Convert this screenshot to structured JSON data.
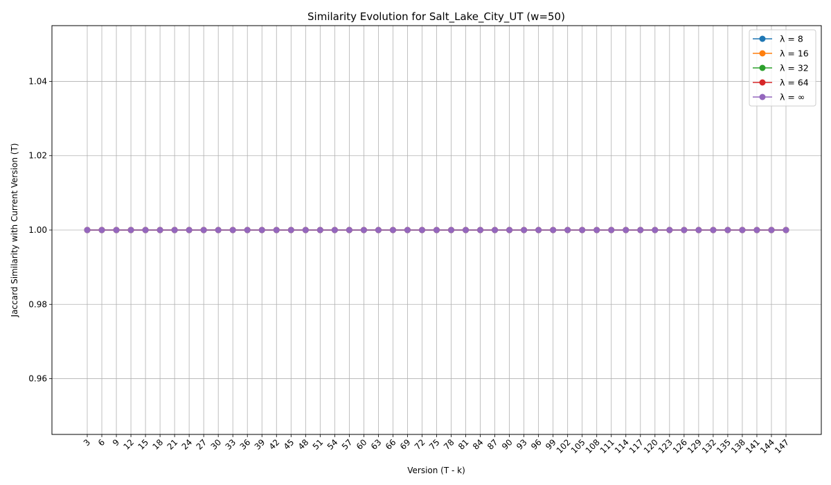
{
  "chart_data": {
    "type": "line",
    "title": "Similarity Evolution for Salt_Lake_City_UT (w=50)",
    "xlabel": "Version (T - k)",
    "ylabel": "Jaccard Similarity with Current Version (T)",
    "x": [
      3,
      6,
      9,
      12,
      15,
      18,
      21,
      24,
      27,
      30,
      33,
      36,
      39,
      42,
      45,
      48,
      51,
      54,
      57,
      60,
      63,
      66,
      69,
      72,
      75,
      78,
      81,
      84,
      87,
      90,
      93,
      96,
      99,
      102,
      105,
      108,
      111,
      114,
      117,
      120,
      123,
      126,
      129,
      132,
      135,
      138,
      141,
      144,
      147
    ],
    "x_tick_labels": [
      "3",
      "6",
      "9",
      "12",
      "15",
      "18",
      "21",
      "24",
      "27",
      "30",
      "33",
      "36",
      "39",
      "42",
      "45",
      "48",
      "51",
      "54",
      "57",
      "60",
      "63",
      "66",
      "69",
      "72",
      "75",
      "78",
      "81",
      "84",
      "87",
      "90",
      "93",
      "96",
      "99",
      "102",
      "105",
      "108",
      "111",
      "114",
      "117",
      "120",
      "123",
      "126",
      "129",
      "132",
      "135",
      "138",
      "141",
      "144",
      "147"
    ],
    "ylim": [
      0.945,
      1.055
    ],
    "y_ticks": [
      0.96,
      0.98,
      1.0,
      1.02,
      1.04
    ],
    "y_tick_labels": [
      "0.96",
      "0.98",
      "1.00",
      "1.02",
      "1.04"
    ],
    "grid": true,
    "legend_position": "top-right",
    "series": [
      {
        "name": "λ = 8",
        "color": "#1f77b4",
        "values": [
          1,
          1,
          1,
          1,
          1,
          1,
          1,
          1,
          1,
          1,
          1,
          1,
          1,
          1,
          1,
          1,
          1,
          1,
          1,
          1,
          1,
          1,
          1,
          1,
          1,
          1,
          1,
          1,
          1,
          1,
          1,
          1,
          1,
          1,
          1,
          1,
          1,
          1,
          1,
          1,
          1,
          1,
          1,
          1,
          1,
          1,
          1,
          1,
          1
        ]
      },
      {
        "name": "λ = 16",
        "color": "#ff7f0e",
        "values": [
          1,
          1,
          1,
          1,
          1,
          1,
          1,
          1,
          1,
          1,
          1,
          1,
          1,
          1,
          1,
          1,
          1,
          1,
          1,
          1,
          1,
          1,
          1,
          1,
          1,
          1,
          1,
          1,
          1,
          1,
          1,
          1,
          1,
          1,
          1,
          1,
          1,
          1,
          1,
          1,
          1,
          1,
          1,
          1,
          1,
          1,
          1,
          1,
          1
        ]
      },
      {
        "name": "λ = 32",
        "color": "#2ca02c",
        "values": [
          1,
          1,
          1,
          1,
          1,
          1,
          1,
          1,
          1,
          1,
          1,
          1,
          1,
          1,
          1,
          1,
          1,
          1,
          1,
          1,
          1,
          1,
          1,
          1,
          1,
          1,
          1,
          1,
          1,
          1,
          1,
          1,
          1,
          1,
          1,
          1,
          1,
          1,
          1,
          1,
          1,
          1,
          1,
          1,
          1,
          1,
          1,
          1,
          1
        ]
      },
      {
        "name": "λ = 64",
        "color": "#d62728",
        "values": [
          1,
          1,
          1,
          1,
          1,
          1,
          1,
          1,
          1,
          1,
          1,
          1,
          1,
          1,
          1,
          1,
          1,
          1,
          1,
          1,
          1,
          1,
          1,
          1,
          1,
          1,
          1,
          1,
          1,
          1,
          1,
          1,
          1,
          1,
          1,
          1,
          1,
          1,
          1,
          1,
          1,
          1,
          1,
          1,
          1,
          1,
          1,
          1,
          1
        ]
      },
      {
        "name": "λ = ∞",
        "color": "#9467bd",
        "values": [
          1,
          1,
          1,
          1,
          1,
          1,
          1,
          1,
          1,
          1,
          1,
          1,
          1,
          1,
          1,
          1,
          1,
          1,
          1,
          1,
          1,
          1,
          1,
          1,
          1,
          1,
          1,
          1,
          1,
          1,
          1,
          1,
          1,
          1,
          1,
          1,
          1,
          1,
          1,
          1,
          1,
          1,
          1,
          1,
          1,
          1,
          1,
          1,
          1
        ]
      }
    ]
  }
}
